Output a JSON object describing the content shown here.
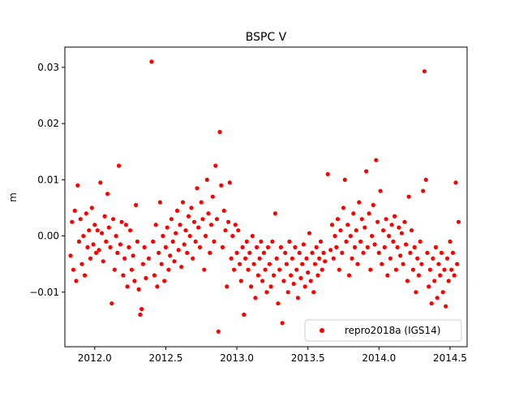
{
  "chart_data": {
    "type": "scatter",
    "title": "BSPC V",
    "xlabel": "",
    "ylabel": "m",
    "xlim": [
      2011.79,
      2014.62
    ],
    "ylim": [
      -0.0197,
      0.0336
    ],
    "x_ticks": [
      2012.0,
      2012.5,
      2013.0,
      2013.5,
      2014.0,
      2014.5
    ],
    "x_tick_labels": [
      "2012.0",
      "2012.5",
      "2013.0",
      "2013.5",
      "2014.0",
      "2014.5"
    ],
    "y_ticks": [
      -0.01,
      0.0,
      0.01,
      0.02,
      0.03
    ],
    "y_tick_labels": [
      "−0.01",
      "0.00",
      "0.01",
      "0.02",
      "0.03"
    ],
    "grid": false,
    "legend_position": "lower-right",
    "series": [
      {
        "name": "repro2018a (IGS14)",
        "color": "#ff0000",
        "marker": "circle",
        "points": [
          [
            2011.83,
            -0.0035
          ],
          [
            2011.84,
            0.0025
          ],
          [
            2011.85,
            -0.006
          ],
          [
            2011.86,
            0.0045
          ],
          [
            2011.87,
            -0.008
          ],
          [
            2011.88,
            0.009
          ],
          [
            2011.89,
            -0.001
          ],
          [
            2011.9,
            0.003
          ],
          [
            2011.91,
            -0.005
          ],
          [
            2011.92,
            0.0
          ],
          [
            2011.93,
            -0.007
          ],
          [
            2011.94,
            0.004
          ],
          [
            2011.95,
            -0.002
          ],
          [
            2011.96,
            0.001
          ],
          [
            2011.97,
            -0.004
          ],
          [
            2011.98,
            0.005
          ],
          [
            2011.99,
            -0.0015
          ],
          [
            2012.0,
            0.002
          ],
          [
            2012.01,
            -0.003
          ],
          [
            2012.02,
            0.001
          ],
          [
            2012.03,
            -0.0025
          ],
          [
            2012.04,
            0.0095
          ],
          [
            2012.05,
            0.0005
          ],
          [
            2012.06,
            -0.0045
          ],
          [
            2012.07,
            0.0035
          ],
          [
            2012.08,
            -0.001
          ],
          [
            2012.09,
            0.0075
          ],
          [
            2012.1,
            0.0015
          ],
          [
            2012.11,
            -0.002
          ],
          [
            2012.12,
            -0.012
          ],
          [
            2012.13,
            0.003
          ],
          [
            2012.14,
            -0.006
          ],
          [
            2012.15,
            0.0
          ],
          [
            2012.16,
            -0.003
          ],
          [
            2012.17,
            0.0125
          ],
          [
            2012.18,
            -0.0015
          ],
          [
            2012.19,
            0.0025
          ],
          [
            2012.2,
            -0.007
          ],
          [
            2012.21,
            -0.004
          ],
          [
            2012.22,
            0.002
          ],
          [
            2012.23,
            -0.009
          ],
          [
            2012.24,
            -0.002
          ],
          [
            2012.25,
            0.001
          ],
          [
            2012.26,
            -0.006
          ],
          [
            2012.27,
            -0.0035
          ],
          [
            2012.28,
            -0.008
          ],
          [
            2012.29,
            0.0055
          ],
          [
            2012.3,
            -0.001
          ],
          [
            2012.31,
            -0.0095
          ],
          [
            2012.32,
            -0.014
          ],
          [
            2012.33,
            -0.013
          ],
          [
            2012.34,
            -0.005
          ],
          [
            2012.35,
            -0.002
          ],
          [
            2012.36,
            -0.0075
          ],
          [
            2012.38,
            -0.004
          ],
          [
            2012.4,
            0.031
          ],
          [
            2012.41,
            -0.001
          ],
          [
            2012.42,
            -0.007
          ],
          [
            2012.43,
            0.002
          ],
          [
            2012.44,
            -0.009
          ],
          [
            2012.45,
            -0.003
          ],
          [
            2012.46,
            0.006
          ],
          [
            2012.47,
            -0.005
          ],
          [
            2012.48,
            0.0
          ],
          [
            2012.49,
            -0.008
          ],
          [
            2012.5,
            -0.002
          ],
          [
            2012.51,
            0.0015
          ],
          [
            2012.52,
            -0.006
          ],
          [
            2012.53,
            -0.0035
          ],
          [
            2012.54,
            0.003
          ],
          [
            2012.55,
            -0.001
          ],
          [
            2012.56,
            -0.0045
          ],
          [
            2012.57,
            0.0005
          ],
          [
            2012.58,
            0.0045
          ],
          [
            2012.59,
            -0.0025
          ],
          [
            2012.6,
            0.002
          ],
          [
            2012.61,
            -0.0055
          ],
          [
            2012.62,
            0.006
          ],
          [
            2012.63,
            -0.0015
          ],
          [
            2012.64,
            0.001
          ],
          [
            2012.65,
            -0.003
          ],
          [
            2012.66,
            0.0035
          ],
          [
            2012.67,
            0.0
          ],
          [
            2012.68,
            0.005
          ],
          [
            2012.69,
            -0.004
          ],
          [
            2012.7,
            0.0025
          ],
          [
            2012.71,
            -0.001
          ],
          [
            2012.72,
            0.0085
          ],
          [
            2012.73,
            0.0015
          ],
          [
            2012.74,
            -0.002
          ],
          [
            2012.75,
            0.006
          ],
          [
            2012.76,
            0.003
          ],
          [
            2012.77,
            -0.006
          ],
          [
            2012.78,
            0.0
          ],
          [
            2012.79,
            0.01
          ],
          [
            2012.8,
            0.004
          ],
          [
            2012.81,
            -0.003
          ],
          [
            2012.82,
            0.002
          ],
          [
            2012.83,
            0.007
          ],
          [
            2012.84,
            -0.001
          ],
          [
            2012.85,
            0.0125
          ],
          [
            2012.86,
            0.003
          ],
          [
            2012.87,
            -0.017
          ],
          [
            2012.88,
            0.0185
          ],
          [
            2012.89,
            0.009
          ],
          [
            2012.9,
            -0.002
          ],
          [
            2012.91,
            0.0045
          ],
          [
            2012.92,
            0.001
          ],
          [
            2012.93,
            -0.009
          ],
          [
            2012.94,
            0.0025
          ],
          [
            2012.95,
            0.0095
          ],
          [
            2012.96,
            -0.004
          ],
          [
            2012.97,
            0.0
          ],
          [
            2012.98,
            -0.006
          ],
          [
            2012.99,
            0.002
          ],
          [
            2013.0,
            -0.003
          ],
          [
            2013.01,
            0.001
          ],
          [
            2013.02,
            -0.005
          ],
          [
            2013.03,
            -0.008
          ],
          [
            2013.04,
            -0.002
          ],
          [
            2013.05,
            -0.014
          ],
          [
            2013.06,
            -0.004
          ],
          [
            2013.07,
            -0.001
          ],
          [
            2013.08,
            -0.006
          ],
          [
            2013.09,
            -0.003
          ],
          [
            2013.1,
            -0.009
          ],
          [
            2013.11,
            0.0
          ],
          [
            2013.12,
            -0.005
          ],
          [
            2013.13,
            -0.011
          ],
          [
            2013.14,
            -0.002
          ],
          [
            2013.15,
            -0.007
          ],
          [
            2013.16,
            -0.004
          ],
          [
            2013.17,
            -0.001
          ],
          [
            2013.18,
            -0.008
          ],
          [
            2013.19,
            -0.003
          ],
          [
            2013.2,
            -0.006
          ],
          [
            2013.21,
            -0.01
          ],
          [
            2013.22,
            -0.002
          ],
          [
            2013.23,
            -0.005
          ],
          [
            2013.24,
            -0.009
          ],
          [
            2013.25,
            -0.001
          ],
          [
            2013.26,
            -0.007
          ],
          [
            2013.27,
            0.004
          ],
          [
            2013.28,
            -0.004
          ],
          [
            2013.29,
            -0.012
          ],
          [
            2013.3,
            -0.006
          ],
          [
            2013.31,
            -0.002
          ],
          [
            2013.32,
            -0.0155
          ],
          [
            2013.33,
            -0.008
          ],
          [
            2013.34,
            -0.003
          ],
          [
            2013.35,
            -0.005
          ],
          [
            2013.36,
            -0.01
          ],
          [
            2013.37,
            -0.001
          ],
          [
            2013.38,
            -0.007
          ],
          [
            2013.39,
            -0.004
          ],
          [
            2013.4,
            -0.0085
          ],
          [
            2013.41,
            -0.002
          ],
          [
            2013.42,
            -0.006
          ],
          [
            2013.43,
            -0.011
          ],
          [
            2013.44,
            -0.003
          ],
          [
            2013.45,
            -0.0075
          ],
          [
            2013.46,
            -0.005
          ],
          [
            2013.47,
            -0.0015
          ],
          [
            2013.48,
            -0.009
          ],
          [
            2013.49,
            -0.004
          ],
          [
            2013.5,
            -0.0065
          ],
          [
            2013.51,
            0.0005
          ],
          [
            2013.52,
            -0.008
          ],
          [
            2013.53,
            -0.003
          ],
          [
            2013.54,
            -0.01
          ],
          [
            2013.55,
            -0.005
          ],
          [
            2013.56,
            -0.002
          ],
          [
            2013.57,
            -0.007
          ],
          [
            2013.58,
            -0.004
          ],
          [
            2013.59,
            -0.001
          ],
          [
            2013.6,
            -0.006
          ],
          [
            2013.61,
            -0.003
          ],
          [
            2013.62,
            -0.0045
          ],
          [
            2013.64,
            0.011
          ],
          [
            2013.66,
            -0.0025
          ],
          [
            2013.67,
            0.002
          ],
          [
            2013.68,
            -0.004
          ],
          [
            2013.69,
            0.0
          ],
          [
            2013.7,
            -0.002
          ],
          [
            2013.71,
            0.003
          ],
          [
            2013.72,
            -0.006
          ],
          [
            2013.73,
            0.001
          ],
          [
            2013.74,
            -0.003
          ],
          [
            2013.75,
            0.005
          ],
          [
            2013.76,
            0.01
          ],
          [
            2013.77,
            -0.001
          ],
          [
            2013.78,
            0.002
          ],
          [
            2013.79,
            -0.007
          ],
          [
            2013.8,
            0.0
          ],
          [
            2013.81,
            -0.004
          ],
          [
            2013.82,
            0.004
          ],
          [
            2013.83,
            -0.002
          ],
          [
            2013.84,
            0.001
          ],
          [
            2013.85,
            -0.005
          ],
          [
            2013.86,
            0.006
          ],
          [
            2013.87,
            -0.001
          ],
          [
            2013.88,
            0.003
          ],
          [
            2013.89,
            -0.003
          ],
          [
            2013.9,
            0.0015
          ],
          [
            2013.91,
            0.0115
          ],
          [
            2013.92,
            -0.002
          ],
          [
            2013.93,
            0.004
          ],
          [
            2013.94,
            -0.006
          ],
          [
            2013.95,
            0.0
          ],
          [
            2013.96,
            0.0055
          ],
          [
            2013.97,
            -0.0015
          ],
          [
            2013.98,
            0.0135
          ],
          [
            2013.99,
            0.0025
          ],
          [
            2014.0,
            -0.003
          ],
          [
            2014.01,
            0.008
          ],
          [
            2014.02,
            -0.005
          ],
          [
            2014.03,
            0.001
          ],
          [
            2014.04,
            -0.002
          ],
          [
            2014.05,
            0.003
          ],
          [
            2014.06,
            -0.007
          ],
          [
            2014.07,
            0.0
          ],
          [
            2014.08,
            -0.004
          ],
          [
            2014.09,
            0.002
          ],
          [
            2014.1,
            -0.001
          ],
          [
            2014.11,
            0.0035
          ],
          [
            2014.12,
            -0.006
          ],
          [
            2014.13,
            -0.002
          ],
          [
            2014.14,
            0.0015
          ],
          [
            2014.15,
            -0.0035
          ],
          [
            2014.16,
            0.0005
          ],
          [
            2014.17,
            -0.005
          ],
          [
            2014.18,
            0.0025
          ],
          [
            2014.19,
            -0.0015
          ],
          [
            2014.2,
            -0.008
          ],
          [
            2014.21,
            0.007
          ],
          [
            2014.22,
            -0.003
          ],
          [
            2014.23,
            0.001
          ],
          [
            2014.24,
            -0.006
          ],
          [
            2014.25,
            -0.002
          ],
          [
            2014.26,
            -0.01
          ],
          [
            2014.27,
            -0.004
          ],
          [
            2014.28,
            -0.007
          ],
          [
            2014.29,
            -0.001
          ],
          [
            2014.3,
            -0.005
          ],
          [
            2014.31,
            0.008
          ],
          [
            2014.32,
            0.0293
          ],
          [
            2014.33,
            0.01
          ],
          [
            2014.34,
            -0.003
          ],
          [
            2014.35,
            -0.009
          ],
          [
            2014.36,
            -0.006
          ],
          [
            2014.37,
            -0.012
          ],
          [
            2014.38,
            -0.004
          ],
          [
            2014.39,
            -0.008
          ],
          [
            2014.4,
            -0.002
          ],
          [
            2014.41,
            -0.011
          ],
          [
            2014.42,
            -0.005
          ],
          [
            2014.43,
            -0.007
          ],
          [
            2014.44,
            -0.003
          ],
          [
            2014.45,
            -0.01
          ],
          [
            2014.46,
            -0.006
          ],
          [
            2014.47,
            -0.0125
          ],
          [
            2014.48,
            -0.004
          ],
          [
            2014.49,
            -0.008
          ],
          [
            2014.5,
            -0.001
          ],
          [
            2014.51,
            -0.006
          ],
          [
            2014.52,
            -0.003
          ],
          [
            2014.53,
            -0.007
          ],
          [
            2014.54,
            0.0095
          ],
          [
            2014.55,
            -0.005
          ],
          [
            2014.56,
            0.0025
          ]
        ]
      }
    ]
  }
}
